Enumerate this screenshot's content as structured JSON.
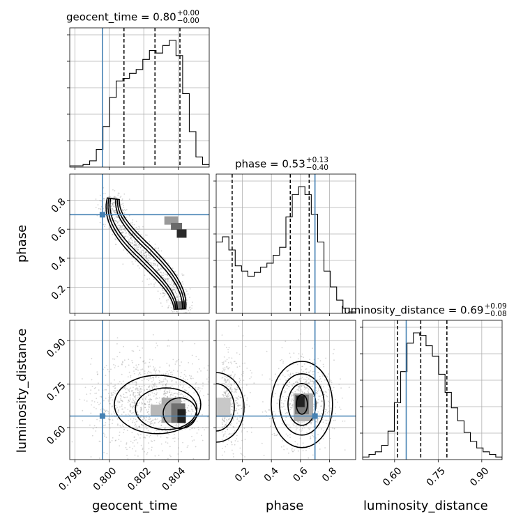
{
  "chart_data": {
    "type": "corner",
    "parameters": [
      "geocent_time",
      "phase",
      "luminosity_distance"
    ],
    "axis_labels": {
      "geocent_time": "geocent_time",
      "phase": "phase",
      "luminosity_distance": "luminosity_distance"
    },
    "titles": [
      {
        "param": "geocent_time",
        "text": "geocent_time = 0.80",
        "upper": "+0.00",
        "lower": "−0.00"
      },
      {
        "param": "phase",
        "text": "phase = 0.53",
        "upper": "+0.13",
        "lower": "−0.40"
      },
      {
        "param": "luminosity_distance",
        "text": "luminosity_distance = 0.69",
        "upper": "+0.09",
        "lower": "−0.08"
      }
    ],
    "ranges": {
      "geocent_time": [
        0.7977,
        0.8058
      ],
      "phase": [
        0.02,
        0.98
      ],
      "luminosity_distance": [
        0.49,
        0.97
      ]
    },
    "ticks": {
      "geocent_time": [
        {
          "v": 0.798,
          "label": "0.798"
        },
        {
          "v": 0.8,
          "label": "0.800"
        },
        {
          "v": 0.802,
          "label": "0.802"
        },
        {
          "v": 0.804,
          "label": "0.804"
        }
      ],
      "phase": [
        {
          "v": 0.2,
          "label": "0.2"
        },
        {
          "v": 0.4,
          "label": "0.4"
        },
        {
          "v": 0.6,
          "label": "0.6"
        },
        {
          "v": 0.8,
          "label": "0.8"
        }
      ],
      "luminosity_distance": [
        {
          "v": 0.6,
          "label": "0.60"
        },
        {
          "v": 0.75,
          "label": "0.75"
        },
        {
          "v": 0.9,
          "label": "0.90"
        }
      ]
    },
    "truths": {
      "geocent_time": 0.7996,
      "phase": 0.7,
      "luminosity_distance": 0.64
    },
    "quantiles": {
      "geocent_time": [
        0.80085,
        0.80265,
        0.8041
      ],
      "phase": [
        0.13,
        0.53,
        0.66
      ],
      "luminosity_distance": [
        0.61,
        0.69,
        0.78
      ]
    },
    "histograms": {
      "geocent_time": [
        1,
        1,
        2,
        5,
        14,
        32,
        55,
        68,
        70,
        74,
        77,
        85,
        92,
        90,
        96,
        100,
        88,
        58,
        28,
        8,
        2
      ],
      "phase": [
        54,
        58,
        48,
        36,
        32,
        28,
        31,
        35,
        38,
        44,
        50,
        73,
        90,
        96,
        90,
        75,
        54,
        32,
        20,
        10,
        4,
        1
      ],
      "luminosity_distance": [
        2,
        4,
        6,
        11,
        22,
        44,
        68,
        90,
        98,
        96,
        88,
        80,
        66,
        52,
        40,
        30,
        21,
        14,
        9,
        6,
        4,
        2
      ]
    },
    "grid": true,
    "color_truth": "#4682b4",
    "color_contour": "#000000"
  }
}
